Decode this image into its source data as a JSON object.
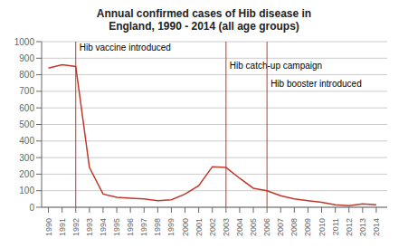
{
  "chart_data": {
    "type": "line",
    "title": "Annual confirmed cases of Hib disease in\nEngland, 1990 - 2014 (all age groups)",
    "x": [
      1990,
      1991,
      1992,
      1993,
      1994,
      1995,
      1996,
      1997,
      1998,
      1999,
      2000,
      2001,
      2002,
      2003,
      2004,
      2005,
      2006,
      2007,
      2008,
      2009,
      2010,
      2011,
      2012,
      2013,
      2014
    ],
    "values": [
      840,
      860,
      850,
      240,
      80,
      60,
      55,
      50,
      40,
      45,
      80,
      130,
      245,
      240,
      175,
      115,
      100,
      70,
      50,
      40,
      30,
      15,
      10,
      20,
      15
    ],
    "color": "#c0392b",
    "xlim": [
      1989.5,
      2014.8
    ],
    "xticks": [
      1990,
      1991,
      1992,
      1993,
      1994,
      1995,
      1996,
      1997,
      1998,
      1999,
      2000,
      2001,
      2002,
      2003,
      2004,
      2005,
      2006,
      2007,
      2008,
      2009,
      2010,
      2011,
      2012,
      2013,
      2014
    ],
    "ylim": [
      0,
      1000
    ],
    "yticks": [
      0,
      100,
      200,
      300,
      400,
      500,
      600,
      700,
      800,
      900,
      1000
    ],
    "grid": "y",
    "annotations": [
      {
        "x": 1992,
        "label": "Hib vaccine introduced",
        "color": "#c0392b"
      },
      {
        "x": 2003,
        "label": "Hib catch-up campaign",
        "color": "#c0392b"
      },
      {
        "x": 2006,
        "label": "Hib booster introduced",
        "color": "#c0392b"
      }
    ]
  }
}
